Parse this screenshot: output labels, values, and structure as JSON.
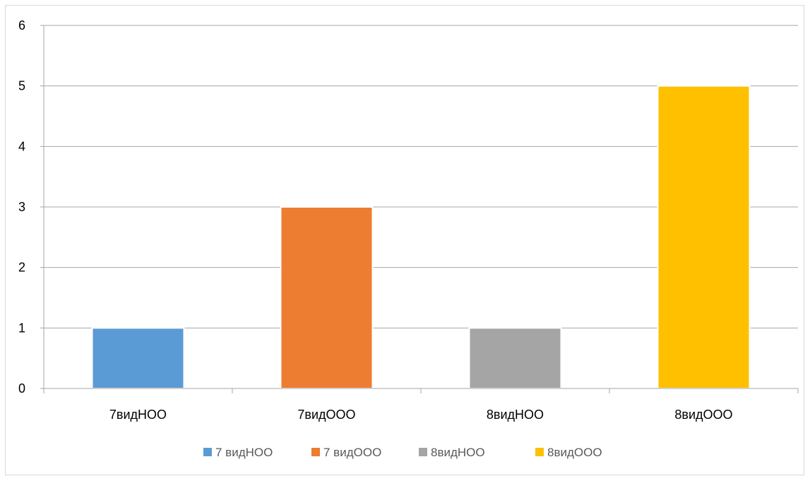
{
  "chart_data": {
    "type": "bar",
    "categories": [
      "7видНОО",
      "7видООО",
      "8видНОО",
      "8видООО"
    ],
    "values": [
      1,
      3,
      1,
      5
    ],
    "colors": [
      "#5b9bd5",
      "#ed7d31",
      "#a5a5a5",
      "#ffc000"
    ],
    "ylim": [
      0,
      6
    ],
    "yticks": [
      0,
      1,
      2,
      3,
      4,
      5,
      6
    ],
    "grid": true,
    "legend_position": "bottom",
    "legend": [
      {
        "label": "7 видНОО",
        "color": "#5b9bd5"
      },
      {
        "label": "7 видООО",
        "color": "#ed7d31"
      },
      {
        "label": "8видНОО",
        "color": "#a5a5a5"
      },
      {
        "label": "8видООО",
        "color": "#ffc000"
      }
    ],
    "title": "",
    "xlabel": "",
    "ylabel": ""
  }
}
